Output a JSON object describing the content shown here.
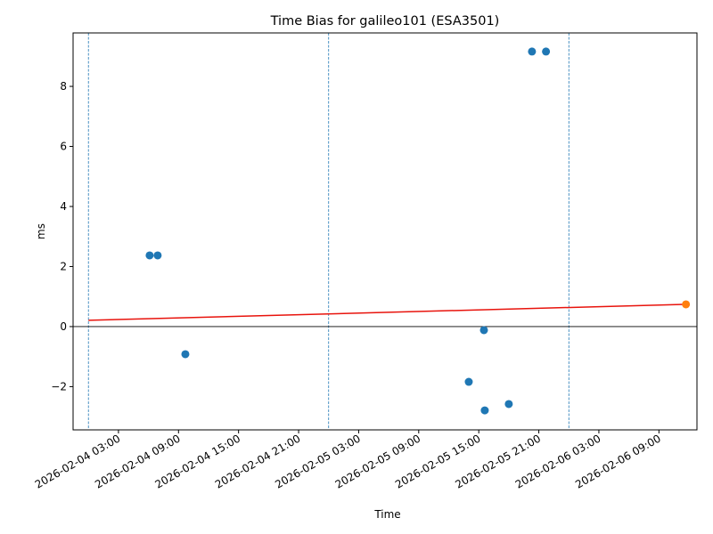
{
  "chart_data": {
    "type": "scatter",
    "title": "Time Bias for galileo101 (ESA3501)",
    "x_label": "Time",
    "y_label": "ms",
    "xlim": [
      "2026-02-03 22:28",
      "2026-02-06 12:48"
    ],
    "xticks": [
      "2026-02-04 03:00",
      "2026-02-04 09:00",
      "2026-02-04 15:00",
      "2026-02-04 21:00",
      "2026-02-05 03:00",
      "2026-02-05 09:00",
      "2026-02-05 15:00",
      "2026-02-05 21:00",
      "2026-02-06 03:00",
      "2026-02-06 09:00"
    ],
    "ylim": [
      -3.44,
      9.78
    ],
    "yticks": [
      {
        "value": -2,
        "label": "−2"
      },
      0,
      2,
      4,
      6,
      8
    ],
    "vlines": [
      "2026-02-04 00:00",
      "2026-02-05 00:00",
      "2026-02-06 00:00"
    ],
    "hline": 0,
    "series": [
      {
        "kind": "points",
        "color": "#1f77b4",
        "x": [
          "2026-02-04 06:07",
          "2026-02-04 06:55",
          "2026-02-04 09:41",
          "2026-02-05 14:00",
          "2026-02-05 15:31",
          "2026-02-05 15:36",
          "2026-02-05 18:00",
          "2026-02-05 20:19",
          "2026-02-05 21:43"
        ],
        "values": [
          2.37,
          2.37,
          -0.92,
          -1.84,
          -0.12,
          -2.79,
          -2.58,
          9.16,
          9.16
        ]
      },
      {
        "kind": "line",
        "color": "#e8130c",
        "x": [
          "2026-02-04 00:00",
          "2026-02-06 11:42"
        ],
        "values": [
          0.21,
          0.74
        ]
      },
      {
        "kind": "points",
        "color": "#ff7f0e",
        "x": [
          "2026-02-06 11:42"
        ],
        "values": [
          0.74
        ]
      }
    ]
  }
}
